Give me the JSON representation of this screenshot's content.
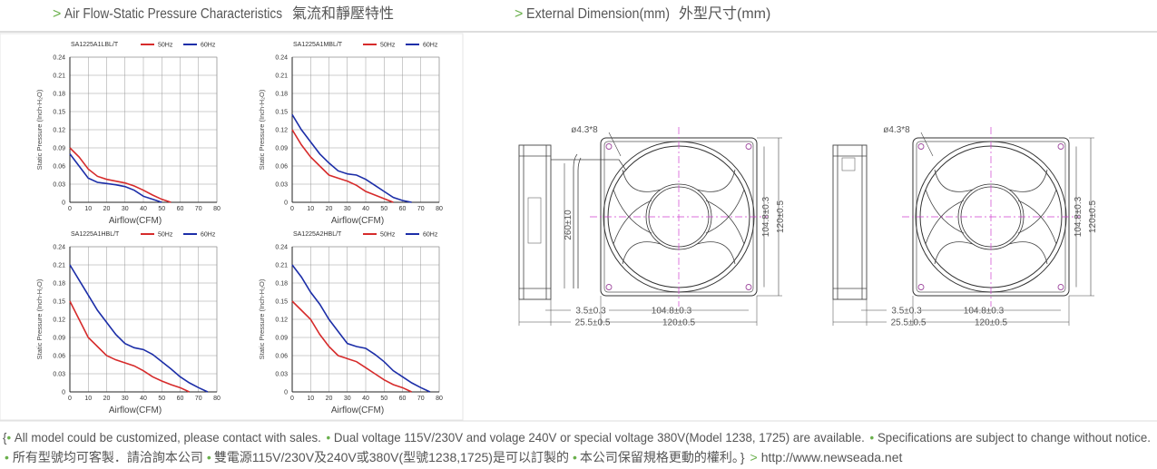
{
  "headers": [
    {
      "marker": ">",
      "title": "Air Flow-Static Pressure Characteristics",
      "title_zh": "氣流和靜壓特性"
    },
    {
      "marker": ">",
      "title": "External Dimension(mm)",
      "title_zh": "外型尺寸(mm)"
    }
  ],
  "chart_data": [
    {
      "type": "line",
      "title": "SA1225A1LBL/T",
      "x_label": "Airflow(CFM)",
      "y_label": "Static Pressure (Inch-H₂O)",
      "x": [
        0,
        5,
        10,
        15,
        20,
        25,
        30,
        35,
        40,
        45,
        50,
        55
      ],
      "series": [
        {
          "name": "50Hz",
          "color": "#d62b2b",
          "values": [
            0.09,
            0.075,
            0.055,
            0.043,
            0.038,
            0.035,
            0.032,
            0.027,
            0.02,
            0.012,
            0.005,
            0
          ]
        },
        {
          "name": "60Hz",
          "color": "#1c2ea8",
          "values": [
            0.08,
            0.06,
            0.04,
            0.033,
            0.031,
            0.029,
            0.026,
            0.02,
            0.01,
            0.005,
            0,
            null
          ]
        }
      ],
      "xlim": [
        0,
        80
      ],
      "ylim": [
        0,
        0.24
      ],
      "xticks": [
        0,
        10,
        20,
        30,
        40,
        50,
        60,
        70,
        80
      ],
      "yticks": [
        0,
        0.03,
        0.06,
        0.09,
        0.12,
        0.15,
        0.18,
        0.21,
        0.24
      ],
      "grid": true
    },
    {
      "type": "line",
      "title": "SA1225A1MBL/T",
      "x_label": "Airflow(CFM)",
      "y_label": "Static Pressure (Inch-H₂O)",
      "x": [
        0,
        5,
        10,
        15,
        20,
        25,
        30,
        35,
        40,
        45,
        50,
        55,
        60,
        65
      ],
      "series": [
        {
          "name": "50Hz",
          "color": "#d62b2b",
          "values": [
            0.12,
            0.095,
            0.075,
            0.06,
            0.045,
            0.04,
            0.035,
            0.028,
            0.018,
            0.012,
            0.006,
            0,
            null,
            null
          ]
        },
        {
          "name": "60Hz",
          "color": "#1c2ea8",
          "values": [
            0.145,
            0.12,
            0.1,
            0.08,
            0.065,
            0.052,
            0.047,
            0.045,
            0.038,
            0.028,
            0.018,
            0.008,
            0.003,
            0
          ]
        }
      ],
      "xlim": [
        0,
        80
      ],
      "ylim": [
        0,
        0.24
      ],
      "xticks": [
        0,
        10,
        20,
        30,
        40,
        50,
        60,
        70,
        80
      ],
      "yticks": [
        0,
        0.03,
        0.06,
        0.09,
        0.12,
        0.15,
        0.18,
        0.21,
        0.24
      ],
      "grid": true
    },
    {
      "type": "line",
      "title": "SA1225A1HBL/T",
      "x_label": "Airflow(CFM)",
      "y_label": "Static Pressure (Inch-H₂O)",
      "x": [
        0,
        5,
        10,
        15,
        20,
        25,
        30,
        35,
        40,
        45,
        50,
        55,
        60,
        65,
        70,
        75
      ],
      "series": [
        {
          "name": "50Hz",
          "color": "#d62b2b",
          "values": [
            0.15,
            0.12,
            0.09,
            0.075,
            0.06,
            0.053,
            0.048,
            0.043,
            0.035,
            0.025,
            0.018,
            0.012,
            0.007,
            0,
            null,
            null
          ]
        },
        {
          "name": "60Hz",
          "color": "#1c2ea8",
          "values": [
            0.21,
            0.185,
            0.16,
            0.135,
            0.115,
            0.095,
            0.08,
            0.073,
            0.07,
            0.062,
            0.05,
            0.038,
            0.025,
            0.015,
            0.007,
            0
          ]
        }
      ],
      "xlim": [
        0,
        80
      ],
      "ylim": [
        0,
        0.24
      ],
      "xticks": [
        0,
        10,
        20,
        30,
        40,
        50,
        60,
        70,
        80
      ],
      "yticks": [
        0,
        0.03,
        0.06,
        0.09,
        0.12,
        0.15,
        0.18,
        0.21,
        0.24
      ],
      "grid": true
    },
    {
      "type": "line",
      "title": "SA1225A2HBL/T",
      "x_label": "Airflow(CFM)",
      "y_label": "Static Pressure (Inch-H₂O)",
      "x": [
        0,
        5,
        10,
        15,
        20,
        25,
        30,
        35,
        40,
        45,
        50,
        55,
        60,
        65,
        70,
        75
      ],
      "series": [
        {
          "name": "50Hz",
          "color": "#d62b2b",
          "values": [
            0.15,
            0.135,
            0.12,
            0.095,
            0.075,
            0.06,
            0.055,
            0.05,
            0.04,
            0.03,
            0.02,
            0.012,
            0.007,
            0,
            null,
            null
          ]
        },
        {
          "name": "60Hz",
          "color": "#1c2ea8",
          "values": [
            0.21,
            0.19,
            0.165,
            0.145,
            0.12,
            0.1,
            0.08,
            0.075,
            0.072,
            0.062,
            0.05,
            0.035,
            0.025,
            0.015,
            0.007,
            0
          ]
        }
      ],
      "xlim": [
        0,
        80
      ],
      "ylim": [
        0,
        0.24
      ],
      "xticks": [
        0,
        10,
        20,
        30,
        40,
        50,
        60,
        70,
        80
      ],
      "yticks": [
        0,
        0.03,
        0.06,
        0.09,
        0.12,
        0.15,
        0.18,
        0.21,
        0.24
      ],
      "grid": true
    }
  ],
  "drawings": [
    {
      "holes": "ø4.3*8",
      "cable": "260±10",
      "inner_v": "104.8±0.3",
      "outer_v": "120±0.5",
      "inner_h": "104.8±0.3",
      "outer_h": "120±0.5",
      "flange": "3.5±0.3",
      "depth": "25.5±0.5"
    },
    {
      "holes": "ø4.3*8",
      "inner_v": "104.8±0.3",
      "outer_v": "120±0.5",
      "inner_h": "104.8±0.3",
      "outer_h": "120±0.5",
      "flange": "3.5±0.3",
      "depth": "25.5±0.5"
    }
  ],
  "footer": {
    "open": "{",
    "bullet": "•",
    "close": "}",
    "marker": ">",
    "en": [
      "All model could be customized, please contact with sales.",
      "Dual voltage 115V/230V and volage 240V or special voltage 380V(Model 1238, 1725) are available.",
      "Specifications are subject to change without notice."
    ],
    "zh": [
      "所有型號均可客製．請洽詢本公司",
      "雙電源115V/230V及240V或380V(型號1238,1725)是可以訂製的",
      "本公司保留規格更動的權利。"
    ],
    "url": "http://www.newseada.net"
  }
}
